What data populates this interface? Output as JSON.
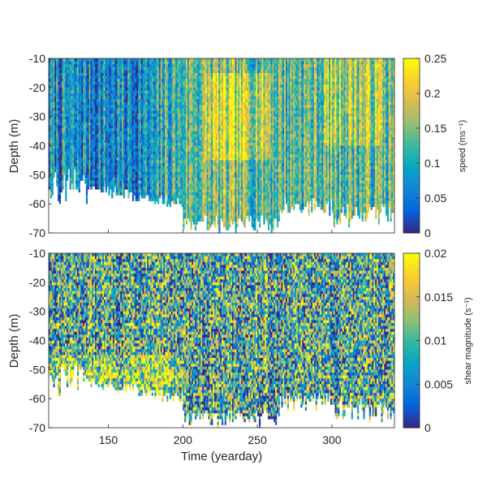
{
  "chart_data": [
    {
      "type": "heatmap",
      "ylabel": "Depth (m)",
      "xlabel": "",
      "xlim": [
        110,
        342
      ],
      "ylim": [
        -70,
        -10
      ],
      "yticks": [
        "-10",
        "-20",
        "-30",
        "-40",
        "-50",
        "-60",
        "-70"
      ],
      "xticks": [],
      "colorbar": {
        "label": "speed (ms⁻¹)",
        "range": [
          0,
          0.25
        ],
        "ticks": [
          "0.25",
          "0.2",
          "0.15",
          "0.1",
          "0.05",
          "0"
        ]
      },
      "colormap": "parula",
      "features": "Vertical streaks dominate; mostly blue before day ~190, strong yellow vertical bands after ~200; data absent (white) below about -55 m before day 200 and below about -63 m later."
    },
    {
      "type": "heatmap",
      "ylabel": "Depth (m)",
      "xlabel": "Time (yearday)",
      "xlim": [
        110,
        342
      ],
      "ylim": [
        -70,
        -10
      ],
      "yticks": [
        "-10",
        "-20",
        "-30",
        "-40",
        "-50",
        "-60",
        "-70"
      ],
      "xticks": [
        "150",
        "200",
        "250",
        "300"
      ],
      "colorbar": {
        "label": "shear magnitude (s⁻¹)",
        "range": [
          0,
          0.02
        ],
        "ticks": [
          "0.02",
          "0.015",
          "0.01",
          "0.005",
          "0"
        ]
      },
      "colormap": "parula",
      "features": "Noisy speckled pattern with horizontal layering; frequent yellow patches; similar white data gap at depth as upper panel."
    }
  ],
  "colors": {
    "parula": [
      "#352a87",
      "#0363e1",
      "#1485d4",
      "#06a7c6",
      "#38b99e",
      "#92bf73",
      "#d9ba56",
      "#fcce2e",
      "#f9fb0e"
    ],
    "axis": "#262626",
    "gap": "#ffffff"
  }
}
